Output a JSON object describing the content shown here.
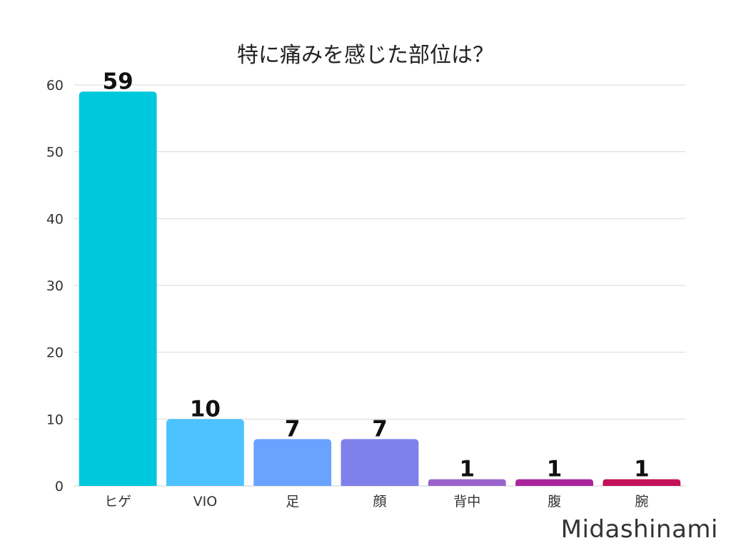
{
  "chart_data": {
    "type": "bar",
    "title": "特に痛みを感じた部位は？",
    "xlabel": "",
    "ylabel": "",
    "categories": [
      "ヒゲ",
      "VIO",
      "足",
      "顔",
      "背中",
      "腹",
      "腕"
    ],
    "values": [
      59,
      10,
      7,
      7,
      1,
      1,
      1
    ],
    "colors": [
      "#00c8dc",
      "#4cc3ff",
      "#6aa3ff",
      "#7f80ea",
      "#9a63cc",
      "#a8259c",
      "#c2125a"
    ],
    "ylim": [
      0,
      60
    ],
    "yticks": [
      0,
      10,
      20,
      30,
      40,
      50,
      60
    ],
    "grid": true,
    "legend": "none"
  },
  "watermark": "Midashinami"
}
